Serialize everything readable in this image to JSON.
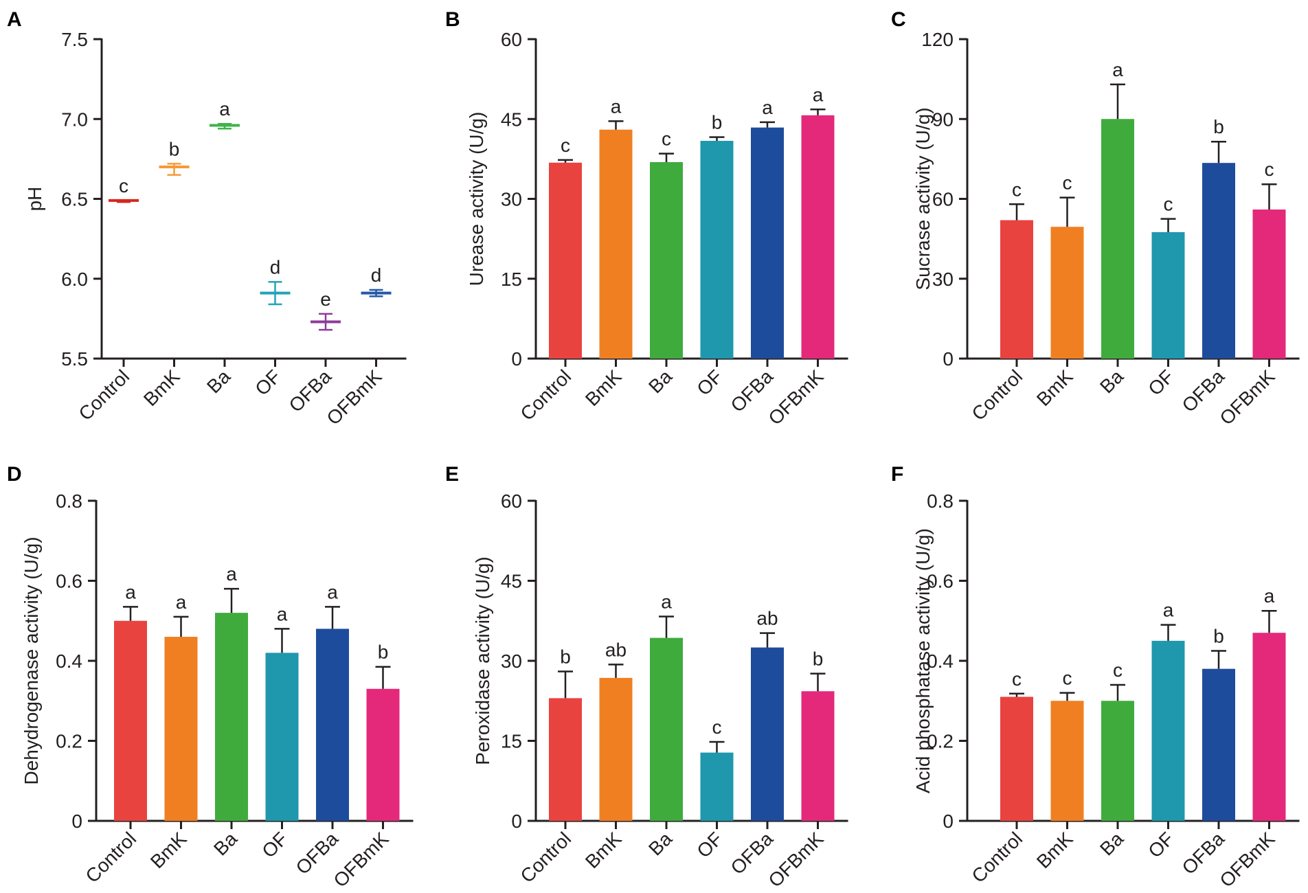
{
  "colors": [
    "#e8433f",
    "#f07f22",
    "#3fab3d",
    "#1f97ad",
    "#1e4c9c",
    "#e4297a"
  ],
  "box_colors": [
    "#d7261e",
    "#f59a38",
    "#3fb44a",
    "#23a2b8",
    "#8e3b98",
    "#2459a6"
  ],
  "chart_data": [
    {
      "panel": "A",
      "type": "scatter",
      "title": "",
      "xlabel": "",
      "ylabel": "pH",
      "ylim": [
        5.5,
        7.5
      ],
      "yticks": [
        {
          "v": 5.5,
          "label": "5.5"
        },
        {
          "v": 6.0,
          "label": "6.0"
        },
        {
          "v": 6.5,
          "label": "6.5"
        },
        {
          "v": 7.0,
          "label": "7.0"
        },
        {
          "v": 7.5,
          "label": "7.5"
        }
      ],
      "categories": [
        "Control",
        "BmK",
        "Ba",
        "OF",
        "OFBa",
        "OFBmK"
      ],
      "mean": [
        6.49,
        6.7,
        6.96,
        5.91,
        5.73,
        5.91
      ],
      "high": [
        6.49,
        6.72,
        6.97,
        5.98,
        5.78,
        5.93
      ],
      "low": [
        6.48,
        6.65,
        6.94,
        5.84,
        5.68,
        5.89
      ],
      "letters": [
        "c",
        "b",
        "a",
        "d",
        "e",
        "d"
      ]
    },
    {
      "panel": "B",
      "type": "bar",
      "title": "",
      "xlabel": "",
      "ylabel": "Urease activity (U/g)",
      "ylim": [
        0,
        60
      ],
      "yticks": [
        {
          "v": 0,
          "label": "0"
        },
        {
          "v": 15,
          "label": "15"
        },
        {
          "v": 30,
          "label": "30"
        },
        {
          "v": 45,
          "label": "45"
        },
        {
          "v": 60,
          "label": "60"
        }
      ],
      "categories": [
        "Control",
        "BmK",
        "Ba",
        "OF",
        "OFBa",
        "OFBmK"
      ],
      "values": [
        36.8,
        43.0,
        36.9,
        40.9,
        43.4,
        45.7
      ],
      "errors": [
        0.5,
        1.6,
        1.6,
        0.7,
        1.0,
        1.1
      ],
      "letters": [
        "c",
        "a",
        "c",
        "b",
        "a",
        "a"
      ]
    },
    {
      "panel": "C",
      "type": "bar",
      "title": "",
      "xlabel": "",
      "ylabel": "Sucrase activity (U/g)",
      "ylim": [
        0,
        120
      ],
      "yticks": [
        {
          "v": 0,
          "label": "0"
        },
        {
          "v": 30,
          "label": "30"
        },
        {
          "v": 60,
          "label": "60"
        },
        {
          "v": 90,
          "label": "90"
        },
        {
          "v": 120,
          "label": "120"
        }
      ],
      "categories": [
        "Control",
        "BmK",
        "Ba",
        "OF",
        "OFBa",
        "OFBmK"
      ],
      "values": [
        52,
        49.5,
        90,
        47.5,
        73.5,
        56
      ],
      "errors": [
        6,
        11,
        13,
        5,
        8,
        9.5
      ],
      "letters": [
        "c",
        "c",
        "a",
        "c",
        "b",
        "c"
      ]
    },
    {
      "panel": "D",
      "type": "bar",
      "title": "",
      "xlabel": "",
      "ylabel": "Dehydrogenase activity (U/g)",
      "ylim": [
        0,
        0.8
      ],
      "yticks": [
        {
          "v": 0,
          "label": "0"
        },
        {
          "v": 0.2,
          "label": "0.2"
        },
        {
          "v": 0.4,
          "label": "0.4"
        },
        {
          "v": 0.6,
          "label": "0.6"
        },
        {
          "v": 0.8,
          "label": "0.8"
        }
      ],
      "categories": [
        "Control",
        "BmK",
        "Ba",
        "OF",
        "OFBa",
        "OFBmK"
      ],
      "values": [
        0.5,
        0.46,
        0.52,
        0.42,
        0.48,
        0.33
      ],
      "errors": [
        0.035,
        0.05,
        0.06,
        0.06,
        0.055,
        0.055
      ],
      "letters": [
        "a",
        "a",
        "a",
        "a",
        "a",
        "b"
      ]
    },
    {
      "panel": "E",
      "type": "bar",
      "title": "",
      "xlabel": "",
      "ylabel": "Peroxidase activity (U/g)",
      "ylim": [
        0,
        60
      ],
      "yticks": [
        {
          "v": 0,
          "label": "0"
        },
        {
          "v": 15,
          "label": "15"
        },
        {
          "v": 30,
          "label": "30"
        },
        {
          "v": 45,
          "label": "45"
        },
        {
          "v": 60,
          "label": "60"
        }
      ],
      "categories": [
        "Control",
        "BmK",
        "Ba",
        "OF",
        "OFBa",
        "OFBmK"
      ],
      "values": [
        23,
        26.8,
        34.3,
        12.8,
        32.5,
        24.3
      ],
      "errors": [
        5,
        2.5,
        4,
        2,
        2.7,
        3.3
      ],
      "letters": [
        "b",
        "ab",
        "a",
        "c",
        "ab",
        "b"
      ]
    },
    {
      "panel": "F",
      "type": "bar",
      "title": "",
      "xlabel": "",
      "ylabel": "Acid phosphatase activity (U/g)",
      "ylim": [
        0,
        0.8
      ],
      "yticks": [
        {
          "v": 0,
          "label": "0"
        },
        {
          "v": 0.2,
          "label": "0.2"
        },
        {
          "v": 0.4,
          "label": "0.4"
        },
        {
          "v": 0.6,
          "label": "0.6"
        },
        {
          "v": 0.8,
          "label": "0.8"
        }
      ],
      "categories": [
        "Control",
        "BmK",
        "Ba",
        "OF",
        "OFBa",
        "OFBmK"
      ],
      "values": [
        0.31,
        0.3,
        0.3,
        0.45,
        0.38,
        0.47
      ],
      "errors": [
        0.008,
        0.02,
        0.04,
        0.04,
        0.045,
        0.055
      ],
      "letters": [
        "c",
        "c",
        "c",
        "a",
        "b",
        "a"
      ]
    }
  ]
}
